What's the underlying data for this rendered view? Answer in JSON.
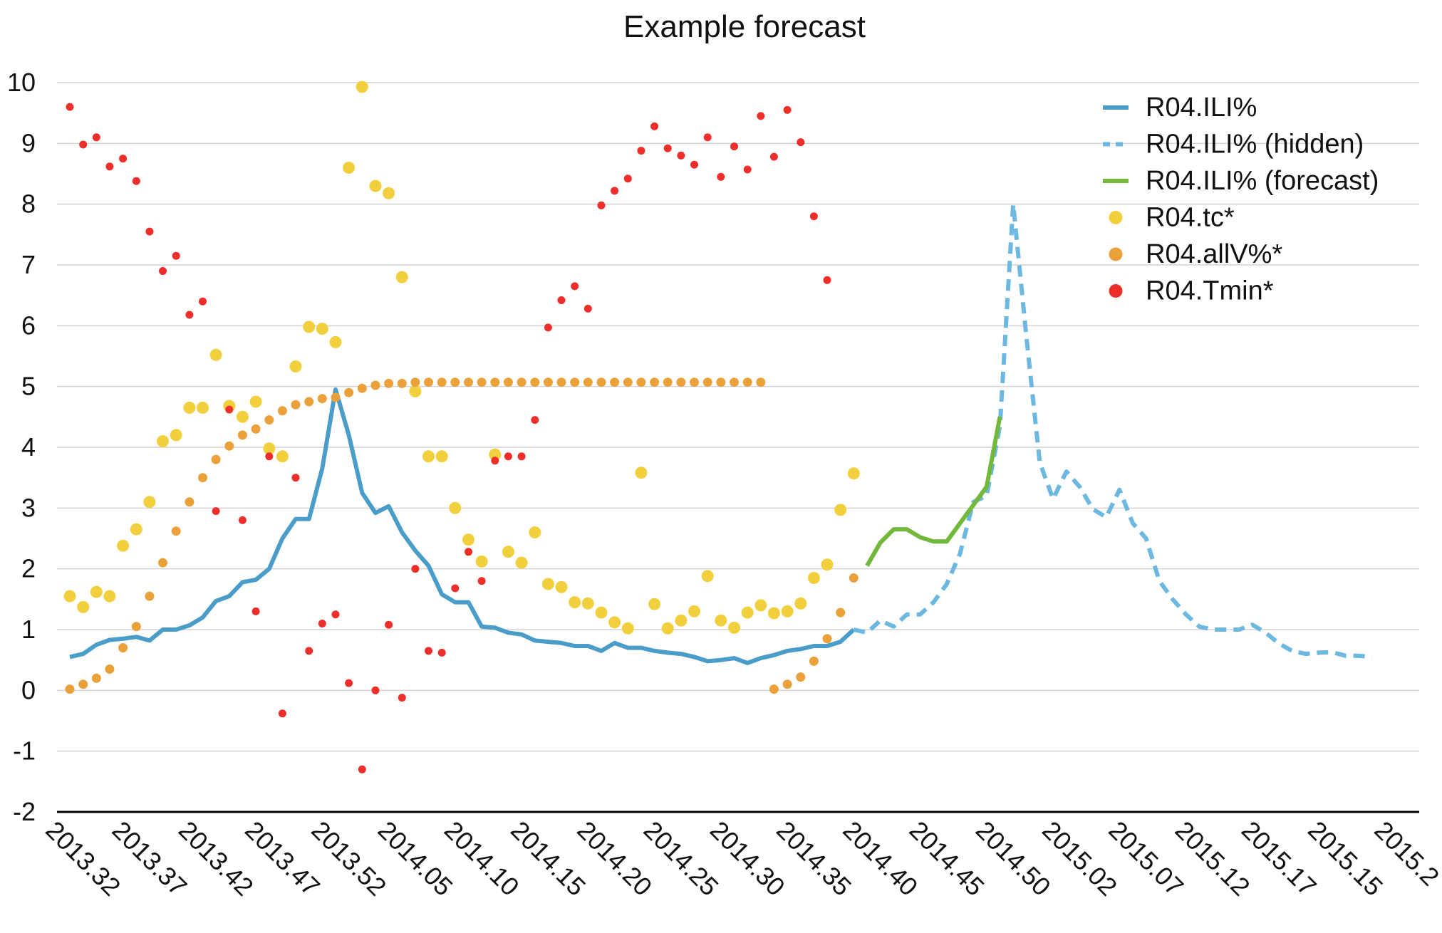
{
  "chart_data": {
    "type": "line",
    "title": "Example forecast",
    "xlabel": "",
    "ylabel": "",
    "ylim": [
      -2,
      10
    ],
    "yticks": [
      "10",
      "9",
      "8",
      "7",
      "6",
      "5",
      "4",
      "3",
      "2",
      "1",
      "0",
      "-1",
      "-2"
    ],
    "x_tick_labels": [
      "2013.32",
      "2013.37",
      "2013.42",
      "2013.47",
      "2013.52",
      "2014.05",
      "2014.10",
      "2014.15",
      "2014.20",
      "2014.25",
      "2014.30",
      "2014.35",
      "2014.40",
      "2014.45",
      "2014.50",
      "2015.02",
      "2015.07",
      "2015.12",
      "2015.17",
      "2015.15",
      "2015.2"
    ],
    "x_tick_every": 5,
    "n_points": 105,
    "grid": true,
    "legend_position": "top-right",
    "colors": {
      "ili": "#4a9cc9",
      "hidden": "#6cb8e0",
      "forecast": "#72b83b",
      "tc": "#f2cf3c",
      "allv": "#eba13a",
      "tmin": "#ee2e2a"
    },
    "series": [
      {
        "name": "R04.ILI%",
        "style": "solid",
        "color": "#4a9cc9",
        "start_index": 0,
        "values": [
          0.55,
          0.6,
          0.75,
          0.83,
          0.85,
          0.88,
          0.82,
          1.0,
          1.0,
          1.07,
          1.2,
          1.47,
          1.55,
          1.78,
          1.82,
          2.0,
          2.5,
          2.82,
          2.82,
          3.65,
          4.95,
          4.2,
          3.25,
          2.92,
          3.03,
          2.6,
          2.3,
          2.05,
          1.58,
          1.45,
          1.45,
          1.05,
          1.03,
          0.95,
          0.92,
          0.82,
          0.8,
          0.78,
          0.73,
          0.73,
          0.65,
          0.78,
          0.7,
          0.7,
          0.65,
          0.62,
          0.6,
          0.55,
          0.48,
          0.5,
          0.53,
          0.45,
          0.53,
          0.58,
          0.65,
          0.68,
          0.73,
          0.73,
          0.8,
          1.0
        ]
      },
      {
        "name": "R04.ILI% (hidden)",
        "style": "dashed",
        "color": "#6cb8e0",
        "start_index": 59,
        "values": [
          1.0,
          0.95,
          1.15,
          1.05,
          1.25,
          1.25,
          1.45,
          1.75,
          2.25,
          3.1,
          3.2,
          4.35,
          8.0,
          5.8,
          3.75,
          3.15,
          3.6,
          3.35,
          2.98,
          2.85,
          3.3,
          2.75,
          2.5,
          1.8,
          1.5,
          1.25,
          1.05,
          1.0,
          1.0,
          1.0,
          1.08,
          0.95,
          0.77,
          0.65,
          0.6,
          0.62,
          0.63,
          0.57,
          0.57,
          0.55
        ]
      },
      {
        "name": "R04.ILI% (forecast)",
        "style": "solid",
        "color": "#72b83b",
        "start_index": 60,
        "values": [
          2.05,
          2.43,
          2.65,
          2.65,
          2.52,
          2.45,
          2.45,
          2.75,
          3.05,
          3.35,
          4.5
        ]
      },
      {
        "name": "R04.tc*",
        "style": "points",
        "color": "#f2cf3c",
        "points": [
          [
            0,
            1.55
          ],
          [
            1,
            1.37
          ],
          [
            2,
            1.62
          ],
          [
            3,
            1.55
          ],
          [
            4,
            2.38
          ],
          [
            5,
            2.65
          ],
          [
            6,
            3.1
          ],
          [
            7,
            4.1
          ],
          [
            8,
            4.2
          ],
          [
            9,
            4.65
          ],
          [
            10,
            4.65
          ],
          [
            11,
            5.52
          ],
          [
            12,
            4.68
          ],
          [
            13,
            4.5
          ],
          [
            14,
            4.75
          ],
          [
            15,
            3.98
          ],
          [
            16,
            3.85
          ],
          [
            17,
            5.33
          ],
          [
            18,
            5.98
          ],
          [
            19,
            5.95
          ],
          [
            20,
            5.73
          ],
          [
            21,
            8.6
          ],
          [
            22,
            9.93
          ],
          [
            23,
            8.3
          ],
          [
            24,
            8.18
          ],
          [
            25,
            6.8
          ],
          [
            26,
            4.92
          ],
          [
            27,
            3.85
          ],
          [
            28,
            3.85
          ],
          [
            29,
            3.0
          ],
          [
            30,
            2.48
          ],
          [
            31,
            2.12
          ],
          [
            32,
            3.88
          ],
          [
            33,
            2.28
          ],
          [
            34,
            2.1
          ],
          [
            35,
            2.6
          ],
          [
            36,
            1.75
          ],
          [
            37,
            1.7
          ],
          [
            38,
            1.45
          ],
          [
            39,
            1.43
          ],
          [
            40,
            1.28
          ],
          [
            41,
            1.12
          ],
          [
            42,
            1.02
          ],
          [
            43,
            3.58
          ],
          [
            44,
            1.42
          ],
          [
            45,
            1.02
          ],
          [
            46,
            1.15
          ],
          [
            47,
            1.3
          ],
          [
            48,
            1.88
          ],
          [
            49,
            1.15
          ],
          [
            50,
            1.03
          ],
          [
            51,
            1.28
          ],
          [
            52,
            1.4
          ],
          [
            53,
            1.27
          ],
          [
            54,
            1.3
          ],
          [
            55,
            1.43
          ],
          [
            56,
            1.85
          ],
          [
            57,
            2.07
          ],
          [
            58,
            2.97
          ],
          [
            59,
            3.57
          ]
        ]
      },
      {
        "name": "R04.allV%*",
        "style": "points",
        "color": "#eba13a",
        "points": [
          [
            0,
            0.02
          ],
          [
            1,
            0.1
          ],
          [
            2,
            0.2
          ],
          [
            3,
            0.35
          ],
          [
            4,
            0.7
          ],
          [
            5,
            1.05
          ],
          [
            6,
            1.55
          ],
          [
            7,
            2.1
          ],
          [
            8,
            2.62
          ],
          [
            9,
            3.1
          ],
          [
            10,
            3.5
          ],
          [
            11,
            3.8
          ],
          [
            12,
            4.02
          ],
          [
            13,
            4.2
          ],
          [
            14,
            4.3
          ],
          [
            15,
            4.45
          ],
          [
            16,
            4.6
          ],
          [
            17,
            4.7
          ],
          [
            18,
            4.75
          ],
          [
            19,
            4.8
          ],
          [
            20,
            4.82
          ],
          [
            21,
            4.9
          ],
          [
            22,
            4.97
          ],
          [
            23,
            5.02
          ],
          [
            24,
            5.05
          ],
          [
            25,
            5.05
          ],
          [
            26,
            5.07
          ],
          [
            27,
            5.07
          ],
          [
            28,
            5.07
          ],
          [
            29,
            5.07
          ],
          [
            30,
            5.07
          ],
          [
            31,
            5.07
          ],
          [
            32,
            5.07
          ],
          [
            33,
            5.07
          ],
          [
            34,
            5.07
          ],
          [
            35,
            5.07
          ],
          [
            36,
            5.07
          ],
          [
            37,
            5.07
          ],
          [
            38,
            5.07
          ],
          [
            39,
            5.07
          ],
          [
            40,
            5.07
          ],
          [
            41,
            5.07
          ],
          [
            42,
            5.07
          ],
          [
            43,
            5.07
          ],
          [
            44,
            5.07
          ],
          [
            45,
            5.07
          ],
          [
            46,
            5.07
          ],
          [
            47,
            5.07
          ],
          [
            48,
            5.07
          ],
          [
            49,
            5.07
          ],
          [
            50,
            5.07
          ],
          [
            51,
            5.07
          ],
          [
            52,
            5.07
          ],
          [
            53,
            0.02
          ],
          [
            54,
            0.1
          ],
          [
            55,
            0.22
          ],
          [
            56,
            0.48
          ],
          [
            57,
            0.85
          ],
          [
            58,
            1.28
          ],
          [
            59,
            1.85
          ]
        ]
      },
      {
        "name": "R04.Tmin*",
        "style": "points",
        "color": "#ee2e2a",
        "points": [
          [
            0,
            9.6
          ],
          [
            1,
            8.98
          ],
          [
            2,
            9.1
          ],
          [
            3,
            8.62
          ],
          [
            4,
            8.75
          ],
          [
            5,
            8.38
          ],
          [
            6,
            7.55
          ],
          [
            7,
            6.9
          ],
          [
            8,
            7.15
          ],
          [
            9,
            6.18
          ],
          [
            10,
            6.4
          ],
          [
            11,
            2.95
          ],
          [
            12,
            4.62
          ],
          [
            13,
            2.8
          ],
          [
            14,
            1.3
          ],
          [
            15,
            3.85
          ],
          [
            16,
            -0.38
          ],
          [
            17,
            3.5
          ],
          [
            18,
            0.65
          ],
          [
            19,
            1.1
          ],
          [
            20,
            1.25
          ],
          [
            21,
            0.12
          ],
          [
            22,
            -1.3
          ],
          [
            23,
            0.0
          ],
          [
            24,
            1.08
          ],
          [
            25,
            -0.12
          ],
          [
            26,
            2.0
          ],
          [
            27,
            0.65
          ],
          [
            28,
            0.62
          ],
          [
            29,
            1.68
          ],
          [
            30,
            2.28
          ],
          [
            31,
            1.8
          ],
          [
            32,
            3.78
          ],
          [
            33,
            3.85
          ],
          [
            34,
            3.85
          ],
          [
            35,
            4.45
          ],
          [
            36,
            5.97
          ],
          [
            37,
            6.42
          ],
          [
            38,
            6.65
          ],
          [
            39,
            6.28
          ],
          [
            40,
            7.98
          ],
          [
            41,
            8.22
          ],
          [
            42,
            8.42
          ],
          [
            43,
            8.88
          ],
          [
            44,
            9.28
          ],
          [
            45,
            8.92
          ],
          [
            46,
            8.8
          ],
          [
            47,
            8.65
          ],
          [
            48,
            9.1
          ],
          [
            49,
            8.45
          ],
          [
            50,
            8.95
          ],
          [
            51,
            8.57
          ],
          [
            52,
            9.45
          ],
          [
            53,
            8.78
          ],
          [
            54,
            9.55
          ],
          [
            55,
            9.02
          ],
          [
            56,
            7.8
          ],
          [
            57,
            6.75
          ]
        ]
      }
    ]
  }
}
